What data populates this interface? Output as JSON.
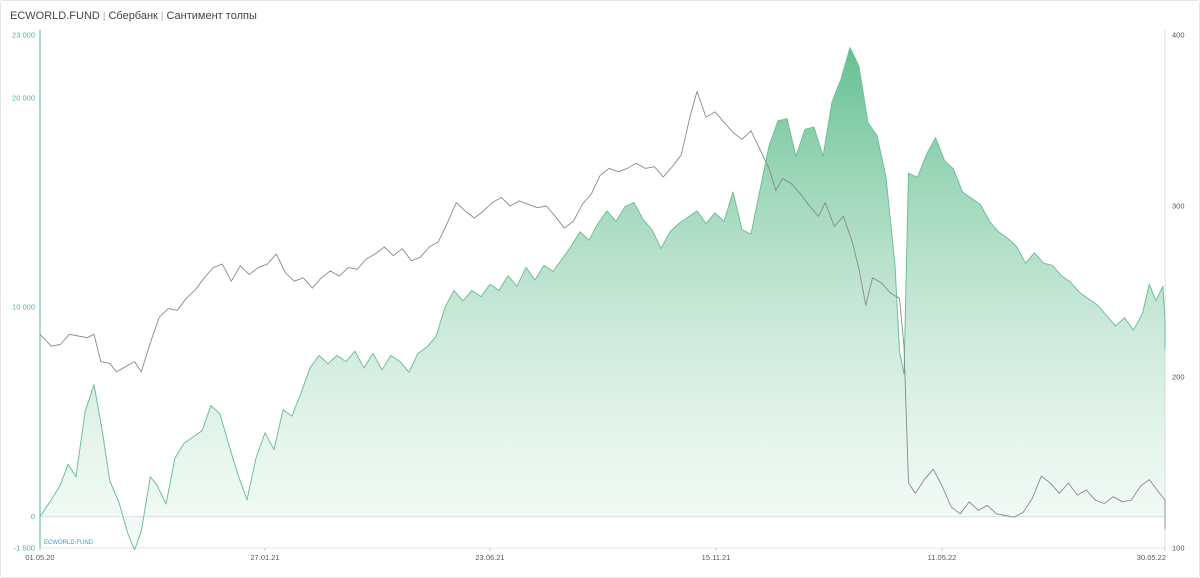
{
  "header": {
    "brand": "ECWORLD.FUND",
    "instrument": "Сбербанк",
    "indicator": "Сантимент толпы"
  },
  "watermark": "ECWORLD.FUND",
  "colors": {
    "area_fill": "#7ccaa4",
    "area_stroke": "#6fc097",
    "price_line": "#8a8a8a",
    "left_axis_text": "#4fb585",
    "right_axis_text": "#555555",
    "watermark": "#2aa3d6"
  },
  "chart_data": {
    "type": "area",
    "x_ticks": [
      "01.05.20",
      "27.01.21",
      "23.06.21",
      "15.11.21",
      "11.05.22",
      "30.05.22"
    ],
    "y_left": {
      "ticks": [
        "23 000",
        "20 000",
        "10 000",
        "0",
        "-1 500"
      ],
      "range": [
        -1500,
        23000
      ]
    },
    "y_right": {
      "ticks": [
        "400",
        "300",
        "200",
        "100"
      ],
      "range": [
        100,
        400
      ]
    },
    "series": [
      {
        "axis": "left",
        "style": "area",
        "points": [
          [
            0.0,
            0
          ],
          [
            0.01,
            800
          ],
          [
            0.018,
            1500
          ],
          [
            0.025,
            2500
          ],
          [
            0.032,
            1900
          ],
          [
            0.04,
            5000
          ],
          [
            0.048,
            6300
          ],
          [
            0.055,
            4200
          ],
          [
            0.062,
            1700
          ],
          [
            0.07,
            700
          ],
          [
            0.078,
            -800
          ],
          [
            0.084,
            -1600
          ],
          [
            0.09,
            -700
          ],
          [
            0.098,
            1900
          ],
          [
            0.104,
            1500
          ],
          [
            0.112,
            600
          ],
          [
            0.12,
            2800
          ],
          [
            0.128,
            3500
          ],
          [
            0.136,
            3800
          ],
          [
            0.144,
            4100
          ],
          [
            0.152,
            5300
          ],
          [
            0.16,
            4900
          ],
          [
            0.168,
            3400
          ],
          [
            0.176,
            2000
          ],
          [
            0.184,
            800
          ],
          [
            0.192,
            2800
          ],
          [
            0.2,
            4000
          ],
          [
            0.208,
            3200
          ],
          [
            0.216,
            5100
          ],
          [
            0.224,
            4800
          ],
          [
            0.232,
            5900
          ],
          [
            0.24,
            7100
          ],
          [
            0.248,
            7700
          ],
          [
            0.256,
            7300
          ],
          [
            0.264,
            7700
          ],
          [
            0.272,
            7400
          ],
          [
            0.28,
            7900
          ],
          [
            0.288,
            7100
          ],
          [
            0.296,
            7800
          ],
          [
            0.304,
            7000
          ],
          [
            0.312,
            7700
          ],
          [
            0.32,
            7400
          ],
          [
            0.328,
            6900
          ],
          [
            0.336,
            7800
          ],
          [
            0.344,
            8100
          ],
          [
            0.352,
            8600
          ],
          [
            0.36,
            10000
          ],
          [
            0.368,
            10800
          ],
          [
            0.376,
            10300
          ],
          [
            0.384,
            10800
          ],
          [
            0.392,
            10500
          ],
          [
            0.4,
            11100
          ],
          [
            0.408,
            10800
          ],
          [
            0.416,
            11500
          ],
          [
            0.424,
            11000
          ],
          [
            0.432,
            11900
          ],
          [
            0.44,
            11300
          ],
          [
            0.448,
            12000
          ],
          [
            0.456,
            11700
          ],
          [
            0.464,
            12300
          ],
          [
            0.472,
            12900
          ],
          [
            0.48,
            13600
          ],
          [
            0.488,
            13200
          ],
          [
            0.496,
            14000
          ],
          [
            0.504,
            14600
          ],
          [
            0.512,
            14100
          ],
          [
            0.52,
            14800
          ],
          [
            0.528,
            15000
          ],
          [
            0.536,
            14200
          ],
          [
            0.544,
            13700
          ],
          [
            0.552,
            12800
          ],
          [
            0.56,
            13600
          ],
          [
            0.568,
            14000
          ],
          [
            0.576,
            14300
          ],
          [
            0.584,
            14600
          ],
          [
            0.592,
            14000
          ],
          [
            0.6,
            14500
          ],
          [
            0.608,
            14100
          ],
          [
            0.616,
            15500
          ],
          [
            0.624,
            13700
          ],
          [
            0.632,
            13500
          ],
          [
            0.64,
            15600
          ],
          [
            0.648,
            17700
          ],
          [
            0.656,
            18900
          ],
          [
            0.664,
            19000
          ],
          [
            0.672,
            17200
          ],
          [
            0.68,
            18500
          ],
          [
            0.688,
            18600
          ],
          [
            0.696,
            17200
          ],
          [
            0.704,
            19800
          ],
          [
            0.712,
            20900
          ],
          [
            0.72,
            22400
          ],
          [
            0.728,
            21500
          ],
          [
            0.736,
            18800
          ],
          [
            0.744,
            18200
          ],
          [
            0.752,
            16200
          ],
          [
            0.76,
            12000
          ],
          [
            0.764,
            7900
          ],
          [
            0.768,
            6800
          ],
          [
            0.772,
            16400
          ],
          [
            0.78,
            16200
          ],
          [
            0.788,
            17300
          ],
          [
            0.796,
            18100
          ],
          [
            0.804,
            17000
          ],
          [
            0.812,
            16600
          ],
          [
            0.82,
            15500
          ],
          [
            0.828,
            15200
          ],
          [
            0.836,
            14900
          ],
          [
            0.844,
            14100
          ],
          [
            0.852,
            13600
          ],
          [
            0.86,
            13300
          ],
          [
            0.868,
            12900
          ],
          [
            0.876,
            12100
          ],
          [
            0.884,
            12600
          ],
          [
            0.892,
            12100
          ],
          [
            0.9,
            12000
          ],
          [
            0.908,
            11500
          ],
          [
            0.916,
            11200
          ],
          [
            0.924,
            10700
          ],
          [
            0.932,
            10400
          ],
          [
            0.94,
            10100
          ],
          [
            0.948,
            9600
          ],
          [
            0.956,
            9100
          ],
          [
            0.964,
            9500
          ],
          [
            0.972,
            8900
          ],
          [
            0.98,
            9700
          ],
          [
            0.986,
            11100
          ],
          [
            0.992,
            10300
          ],
          [
            0.998,
            11000
          ],
          [
            1.004,
            9400
          ],
          [
            1.012,
            8000
          ]
        ]
      },
      {
        "axis": "right",
        "style": "line",
        "points": [
          [
            0.0,
            225
          ],
          [
            0.01,
            218
          ],
          [
            0.018,
            219
          ],
          [
            0.026,
            225
          ],
          [
            0.034,
            224
          ],
          [
            0.042,
            223
          ],
          [
            0.048,
            225
          ],
          [
            0.054,
            209
          ],
          [
            0.062,
            208
          ],
          [
            0.068,
            203
          ],
          [
            0.076,
            206
          ],
          [
            0.084,
            209
          ],
          [
            0.09,
            203
          ],
          [
            0.098,
            220
          ],
          [
            0.106,
            235
          ],
          [
            0.114,
            240
          ],
          [
            0.122,
            239
          ],
          [
            0.13,
            246
          ],
          [
            0.138,
            251
          ],
          [
            0.146,
            258
          ],
          [
            0.154,
            264
          ],
          [
            0.162,
            266
          ],
          [
            0.17,
            256
          ],
          [
            0.178,
            265
          ],
          [
            0.186,
            260
          ],
          [
            0.194,
            264
          ],
          [
            0.202,
            266
          ],
          [
            0.21,
            272
          ],
          [
            0.218,
            261
          ],
          [
            0.226,
            256
          ],
          [
            0.234,
            258
          ],
          [
            0.242,
            252
          ],
          [
            0.25,
            258
          ],
          [
            0.258,
            262
          ],
          [
            0.266,
            259
          ],
          [
            0.274,
            264
          ],
          [
            0.282,
            263
          ],
          [
            0.29,
            269
          ],
          [
            0.298,
            272
          ],
          [
            0.306,
            276
          ],
          [
            0.314,
            271
          ],
          [
            0.322,
            275
          ],
          [
            0.33,
            268
          ],
          [
            0.338,
            270
          ],
          [
            0.346,
            276
          ],
          [
            0.354,
            279
          ],
          [
            0.362,
            290
          ],
          [
            0.37,
            302
          ],
          [
            0.378,
            297
          ],
          [
            0.386,
            293
          ],
          [
            0.394,
            297
          ],
          [
            0.402,
            302
          ],
          [
            0.41,
            305
          ],
          [
            0.418,
            300
          ],
          [
            0.426,
            303
          ],
          [
            0.434,
            301
          ],
          [
            0.442,
            299
          ],
          [
            0.45,
            300
          ],
          [
            0.458,
            294
          ],
          [
            0.466,
            287
          ],
          [
            0.474,
            291
          ],
          [
            0.482,
            301
          ],
          [
            0.49,
            307
          ],
          [
            0.498,
            318
          ],
          [
            0.506,
            322
          ],
          [
            0.514,
            320
          ],
          [
            0.522,
            322
          ],
          [
            0.53,
            325
          ],
          [
            0.538,
            322
          ],
          [
            0.546,
            323
          ],
          [
            0.554,
            317
          ],
          [
            0.562,
            323
          ],
          [
            0.57,
            330
          ],
          [
            0.578,
            353
          ],
          [
            0.584,
            367
          ],
          [
            0.592,
            352
          ],
          [
            0.6,
            355
          ],
          [
            0.608,
            349
          ],
          [
            0.616,
            343
          ],
          [
            0.624,
            339
          ],
          [
            0.632,
            344
          ],
          [
            0.64,
            333
          ],
          [
            0.648,
            322
          ],
          [
            0.654,
            309
          ],
          [
            0.66,
            316
          ],
          [
            0.668,
            313
          ],
          [
            0.676,
            307
          ],
          [
            0.684,
            300
          ],
          [
            0.692,
            294
          ],
          [
            0.698,
            302
          ],
          [
            0.706,
            288
          ],
          [
            0.714,
            294
          ],
          [
            0.722,
            279
          ],
          [
            0.728,
            263
          ],
          [
            0.734,
            242
          ],
          [
            0.74,
            258
          ],
          [
            0.748,
            255
          ],
          [
            0.756,
            249
          ],
          [
            0.764,
            246
          ],
          [
            0.768,
            218
          ],
          [
            0.772,
            138
          ],
          [
            0.778,
            132
          ],
          [
            0.786,
            140
          ],
          [
            0.794,
            146
          ],
          [
            0.802,
            136
          ],
          [
            0.81,
            124
          ],
          [
            0.818,
            120
          ],
          [
            0.826,
            127
          ],
          [
            0.834,
            122
          ],
          [
            0.842,
            125
          ],
          [
            0.85,
            120
          ],
          [
            0.858,
            119
          ],
          [
            0.866,
            118
          ],
          [
            0.874,
            121
          ],
          [
            0.882,
            129
          ],
          [
            0.89,
            142
          ],
          [
            0.898,
            138
          ],
          [
            0.906,
            132
          ],
          [
            0.914,
            138
          ],
          [
            0.922,
            131
          ],
          [
            0.93,
            134
          ],
          [
            0.938,
            128
          ],
          [
            0.946,
            126
          ],
          [
            0.954,
            130
          ],
          [
            0.962,
            127
          ],
          [
            0.97,
            128
          ],
          [
            0.978,
            136
          ],
          [
            0.986,
            140
          ],
          [
            0.994,
            133
          ],
          [
            1.002,
            128
          ],
          [
            1.008,
            111
          ],
          [
            1.014,
            111
          ]
        ]
      }
    ]
  }
}
